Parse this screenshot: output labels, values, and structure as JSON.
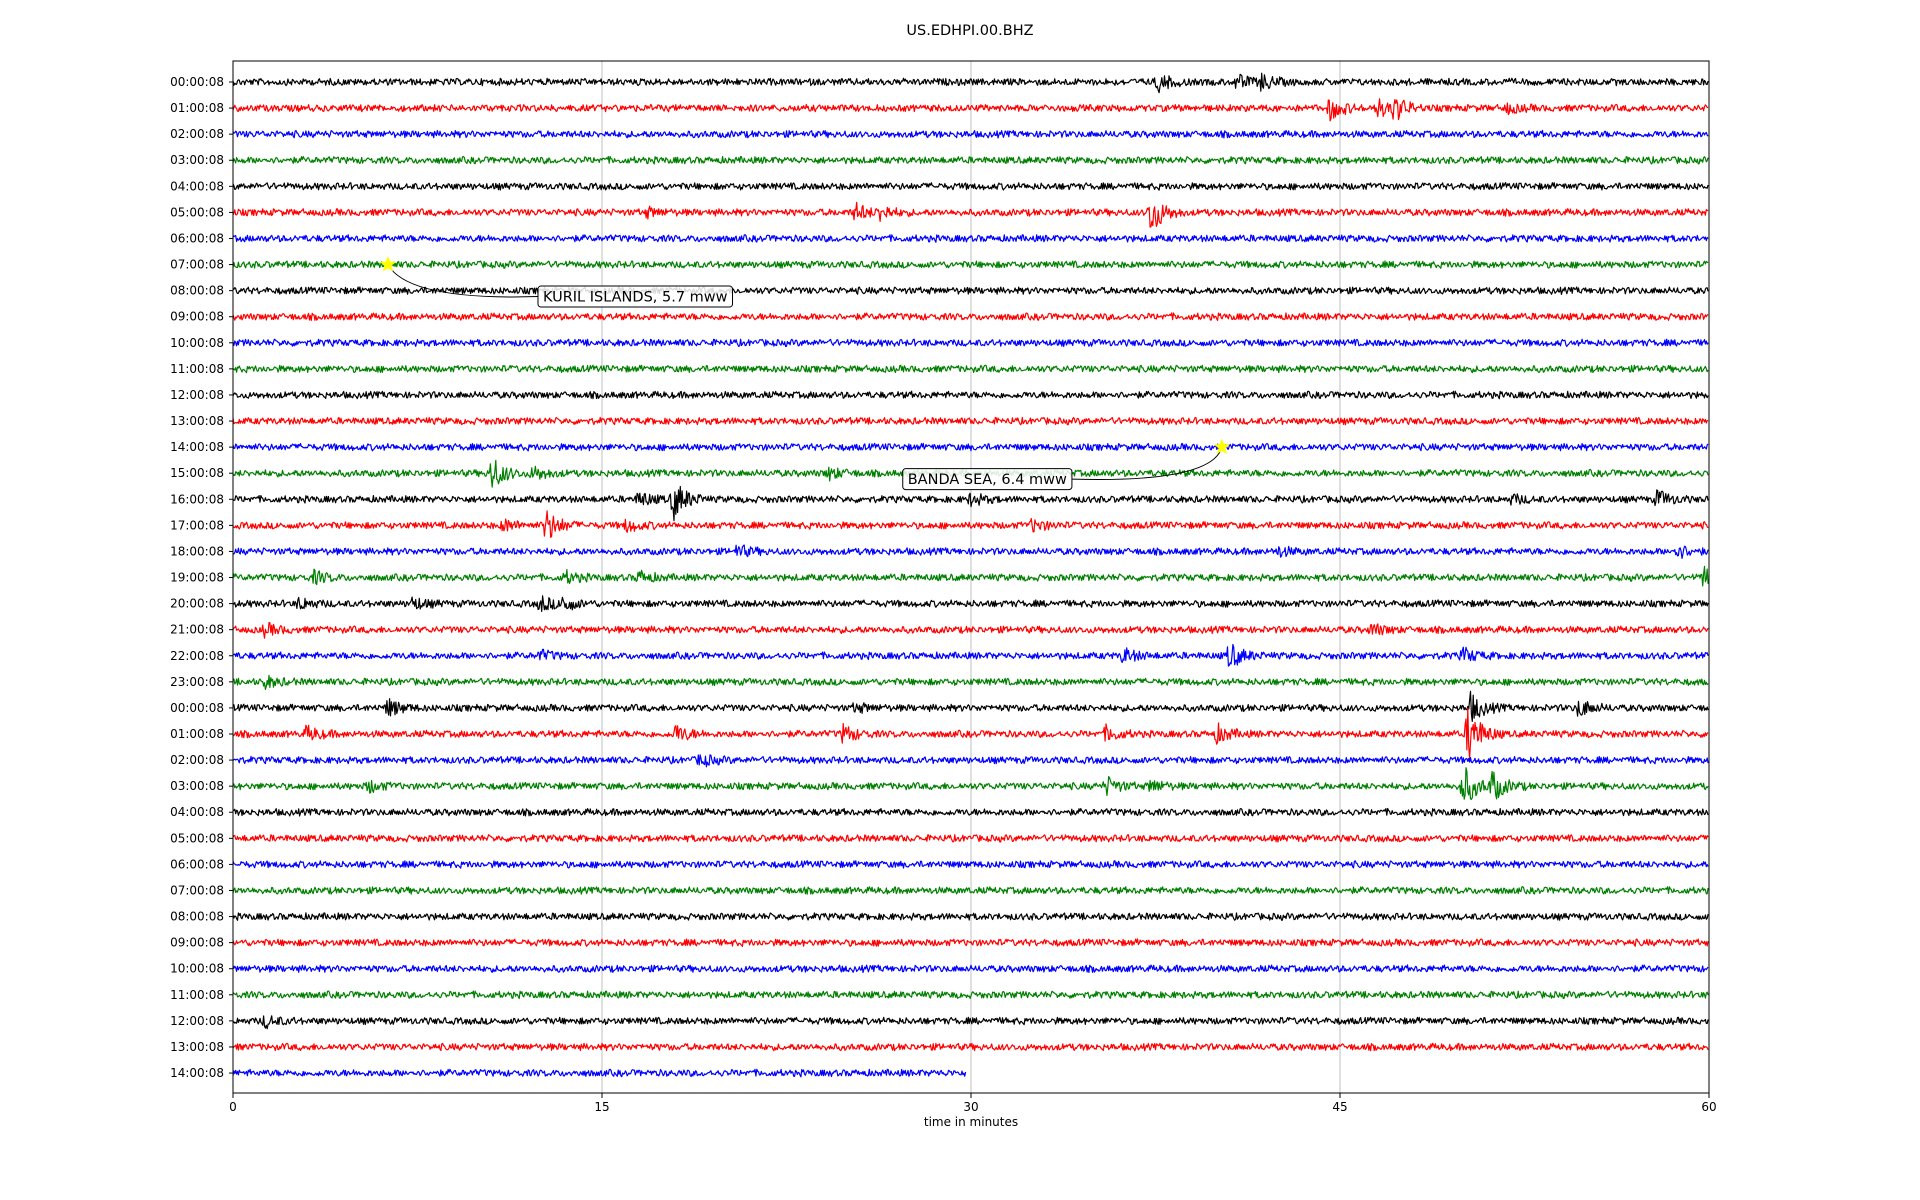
{
  "chart_data": {
    "type": "line",
    "title": "US.EDHPI.00.BHZ",
    "xlabel": "time in minutes",
    "ylabel": "",
    "xlim": [
      0,
      60
    ],
    "xticks": [
      "0",
      "15",
      "30",
      "45",
      "60"
    ],
    "grid": "vertical lines at 15, 30, 45",
    "trace_colors": [
      "#000000",
      "#ff0000",
      "#0000ff",
      "#008000"
    ],
    "rows": [
      "00:00:08",
      "01:00:08",
      "02:00:08",
      "03:00:08",
      "04:00:08",
      "05:00:08",
      "06:00:08",
      "07:00:08",
      "08:00:08",
      "09:00:08",
      "10:00:08",
      "11:00:08",
      "12:00:08",
      "13:00:08",
      "14:00:08",
      "15:00:08",
      "16:00:08",
      "17:00:08",
      "18:00:08",
      "19:00:08",
      "20:00:08",
      "21:00:08",
      "22:00:08",
      "23:00:08",
      "00:00:08",
      "01:00:08",
      "02:00:08",
      "03:00:08",
      "04:00:08",
      "05:00:08",
      "06:00:08",
      "07:00:08",
      "08:00:08",
      "09:00:08",
      "10:00:08",
      "11:00:08",
      "12:00:08",
      "13:00:08",
      "14:00:08"
    ],
    "last_row_end_minute": 29.8,
    "events": [
      {
        "label": "KURIL ISLANDS, 5.7 mww",
        "row": 7,
        "minute": 6.3,
        "marker": "star",
        "marker_color": "#ffff00"
      },
      {
        "label": "BANDA SEA, 6.4 mww",
        "row": 14,
        "minute": 40.2,
        "marker": "star",
        "marker_color": "#ffff00"
      }
    ],
    "bursts": [
      {
        "row": 0,
        "minute": 37.6,
        "amp": 0.6
      },
      {
        "row": 0,
        "minute": 40.8,
        "amp": 0.5
      },
      {
        "row": 0,
        "minute": 41.8,
        "amp": 0.5
      },
      {
        "row": 1,
        "minute": 44.6,
        "amp": 0.8
      },
      {
        "row": 1,
        "minute": 46.5,
        "amp": 0.6
      },
      {
        "row": 1,
        "minute": 47.2,
        "amp": 0.8
      },
      {
        "row": 1,
        "minute": 51.8,
        "amp": 0.3
      },
      {
        "row": 5,
        "minute": 16.8,
        "amp": 0.3
      },
      {
        "row": 5,
        "minute": 25.3,
        "amp": 0.6
      },
      {
        "row": 5,
        "minute": 26.3,
        "amp": 0.5
      },
      {
        "row": 5,
        "minute": 37.3,
        "amp": 1.5
      },
      {
        "row": 15,
        "minute": 10.5,
        "amp": 1.2
      },
      {
        "row": 15,
        "minute": 12.2,
        "amp": 0.5
      },
      {
        "row": 15,
        "minute": 24.2,
        "amp": 0.4
      },
      {
        "row": 16,
        "minute": 16.5,
        "amp": 0.5
      },
      {
        "row": 16,
        "minute": 17.9,
        "amp": 1.4
      },
      {
        "row": 16,
        "minute": 30.0,
        "amp": 0.4
      },
      {
        "row": 16,
        "minute": 52.0,
        "amp": 0.3
      },
      {
        "row": 16,
        "minute": 57.9,
        "amp": 0.6
      },
      {
        "row": 17,
        "minute": 11.0,
        "amp": 0.4
      },
      {
        "row": 17,
        "minute": 12.7,
        "amp": 1.2
      },
      {
        "row": 17,
        "minute": 16.0,
        "amp": 0.4
      },
      {
        "row": 17,
        "minute": 32.5,
        "amp": 0.4
      },
      {
        "row": 18,
        "minute": 20.5,
        "amp": 0.4
      },
      {
        "row": 18,
        "minute": 42.5,
        "amp": 0.3
      },
      {
        "row": 18,
        "minute": 58.7,
        "amp": 0.5
      },
      {
        "row": 19,
        "minute": 3.3,
        "amp": 0.4
      },
      {
        "row": 19,
        "minute": 13.5,
        "amp": 0.4
      },
      {
        "row": 19,
        "minute": 16.5,
        "amp": 0.4
      },
      {
        "row": 19,
        "minute": 59.8,
        "amp": 0.8
      },
      {
        "row": 20,
        "minute": 2.7,
        "amp": 0.4
      },
      {
        "row": 20,
        "minute": 7.3,
        "amp": 0.4
      },
      {
        "row": 20,
        "minute": 12.5,
        "amp": 0.5
      },
      {
        "row": 20,
        "minute": 13.4,
        "amp": 0.5
      },
      {
        "row": 21,
        "minute": 1.3,
        "amp": 0.4
      },
      {
        "row": 21,
        "minute": 46.3,
        "amp": 0.4
      },
      {
        "row": 22,
        "minute": 12.5,
        "amp": 0.3
      },
      {
        "row": 22,
        "minute": 36.2,
        "amp": 0.5
      },
      {
        "row": 22,
        "minute": 40.5,
        "amp": 0.9
      },
      {
        "row": 22,
        "minute": 50.0,
        "amp": 0.5
      },
      {
        "row": 23,
        "minute": 1.3,
        "amp": 0.4
      },
      {
        "row": 24,
        "minute": 6.3,
        "amp": 0.6
      },
      {
        "row": 24,
        "minute": 25.3,
        "amp": 0.3
      },
      {
        "row": 24,
        "minute": 50.3,
        "amp": 1.0
      },
      {
        "row": 24,
        "minute": 54.7,
        "amp": 0.6
      },
      {
        "row": 25,
        "minute": 3.0,
        "amp": 0.5
      },
      {
        "row": 25,
        "minute": 18.0,
        "amp": 0.6
      },
      {
        "row": 25,
        "minute": 24.8,
        "amp": 0.6
      },
      {
        "row": 25,
        "minute": 35.5,
        "amp": 0.5
      },
      {
        "row": 25,
        "minute": 40.0,
        "amp": 0.6
      },
      {
        "row": 25,
        "minute": 50.2,
        "amp": 2.0
      },
      {
        "row": 26,
        "minute": 19.0,
        "amp": 0.4
      },
      {
        "row": 27,
        "minute": 5.5,
        "amp": 0.4
      },
      {
        "row": 27,
        "minute": 35.5,
        "amp": 0.6
      },
      {
        "row": 27,
        "minute": 37.3,
        "amp": 0.4
      },
      {
        "row": 27,
        "minute": 50.0,
        "amp": 1.5
      },
      {
        "row": 27,
        "minute": 51.2,
        "amp": 1.0
      },
      {
        "row": 36,
        "minute": 1.3,
        "amp": 0.4
      }
    ]
  }
}
